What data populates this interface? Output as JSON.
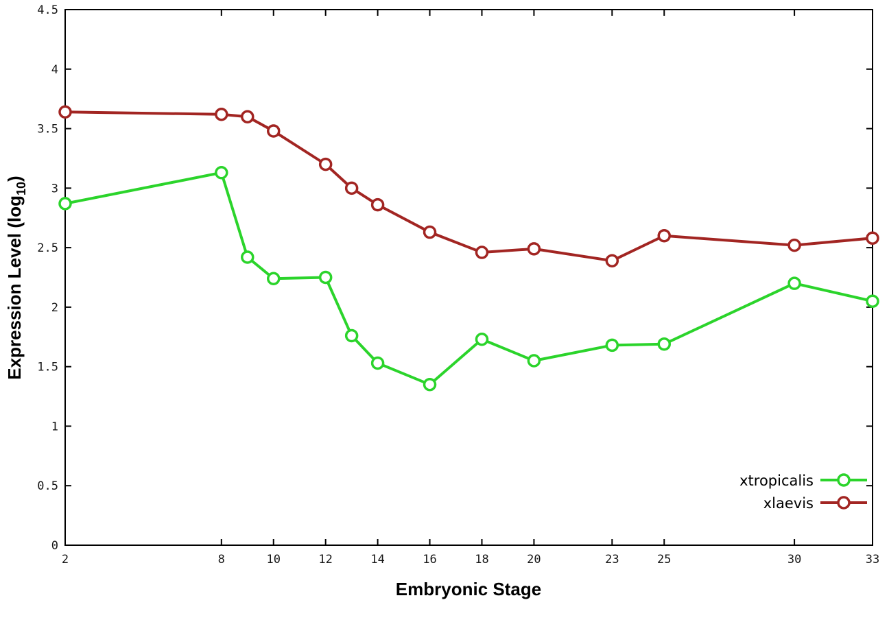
{
  "page": {
    "background_color": "#ffffff",
    "border_color": "#000000"
  },
  "chart_data": {
    "type": "line",
    "title": "",
    "xlabel": "Embryonic Stage",
    "ylabel": "Expression Level (log10)",
    "ylabel_main": "Expression Level (log",
    "ylabel_sub": "10",
    "ylabel_end": ")",
    "xlim": [
      2,
      33
    ],
    "ylim": [
      0,
      4.5
    ],
    "grid": false,
    "legend_position": "bottom-right",
    "marker": "open-circle",
    "x_ticks": [
      2,
      8,
      10,
      12,
      14,
      16,
      18,
      20,
      23,
      25,
      30,
      33
    ],
    "x_tick_labels": [
      "2",
      "8",
      "10",
      "12",
      "14",
      "16",
      "18",
      "20",
      "23",
      "25",
      "30",
      "33"
    ],
    "y_ticks": [
      0,
      0.5,
      1,
      1.5,
      2,
      2.5,
      3,
      3.5,
      4,
      4.5
    ],
    "y_tick_labels": [
      "0",
      "0.5",
      "1",
      "1.5",
      "2",
      "2.5",
      "3",
      "3.5",
      "4",
      "4.5"
    ],
    "x": [
      2,
      8,
      9,
      10,
      12,
      13,
      14,
      16,
      18,
      20,
      23,
      25,
      30,
      33
    ],
    "series": [
      {
        "name": "xtropicalis",
        "color": "#2bd42b",
        "values": [
          2.87,
          3.13,
          2.42,
          2.24,
          2.25,
          1.76,
          1.53,
          1.35,
          1.73,
          1.55,
          1.68,
          1.69,
          2.2,
          2.05
        ]
      },
      {
        "name": "xlaevis",
        "color": "#a22522",
        "values": [
          3.64,
          3.62,
          3.6,
          3.48,
          3.2,
          3.0,
          2.86,
          2.63,
          2.46,
          2.49,
          2.39,
          2.6,
          2.52,
          2.58
        ]
      }
    ]
  }
}
